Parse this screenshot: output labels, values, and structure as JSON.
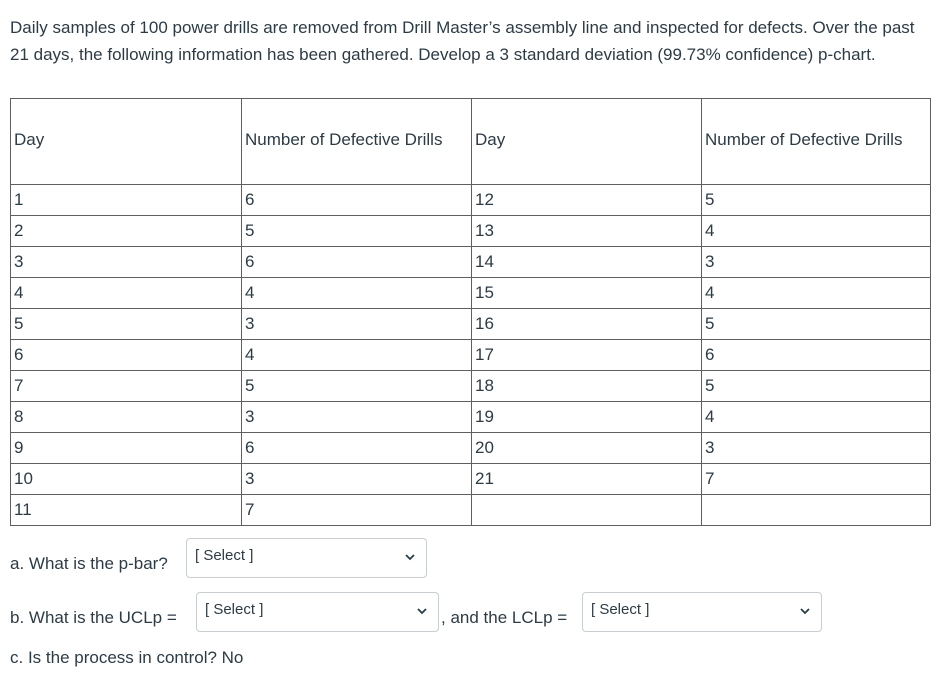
{
  "intro": "Daily samples of 100 power drills are removed from Drill Master’s assembly line and inspected for defects. Over the past 21 days, the following information has been gathered. Develop a 3 standard deviation (99.73% confidence) p-chart.",
  "table": {
    "headers": [
      "Day",
      "Number of Defective Drills",
      "Day",
      "Number of Defective Drills"
    ],
    "rows": [
      [
        "1",
        "6",
        "12",
        "5"
      ],
      [
        "2",
        "5",
        "13",
        "4"
      ],
      [
        "3",
        "6",
        "14",
        "3"
      ],
      [
        "4",
        "4",
        "15",
        "4"
      ],
      [
        "5",
        "3",
        "16",
        "5"
      ],
      [
        "6",
        "4",
        "17",
        "6"
      ],
      [
        "7",
        "5",
        "18",
        "5"
      ],
      [
        "8",
        "3",
        "19",
        "4"
      ],
      [
        "9",
        "6",
        "20",
        "3"
      ],
      [
        "10",
        "3",
        "21",
        "7"
      ],
      [
        "11",
        "7",
        "",
        ""
      ]
    ]
  },
  "questions": {
    "a_label": "a. What is the p-bar?",
    "a_select": "[ Select ]",
    "b_label": "b. What is the UCLp =",
    "b_select": "[ Select ]",
    "b_mid": ", and the LCLp =",
    "b_select2": "[ Select ]",
    "c_text": "c. Is the process in control? No"
  },
  "icons": {
    "dropdown": "chevron-down-icon"
  }
}
